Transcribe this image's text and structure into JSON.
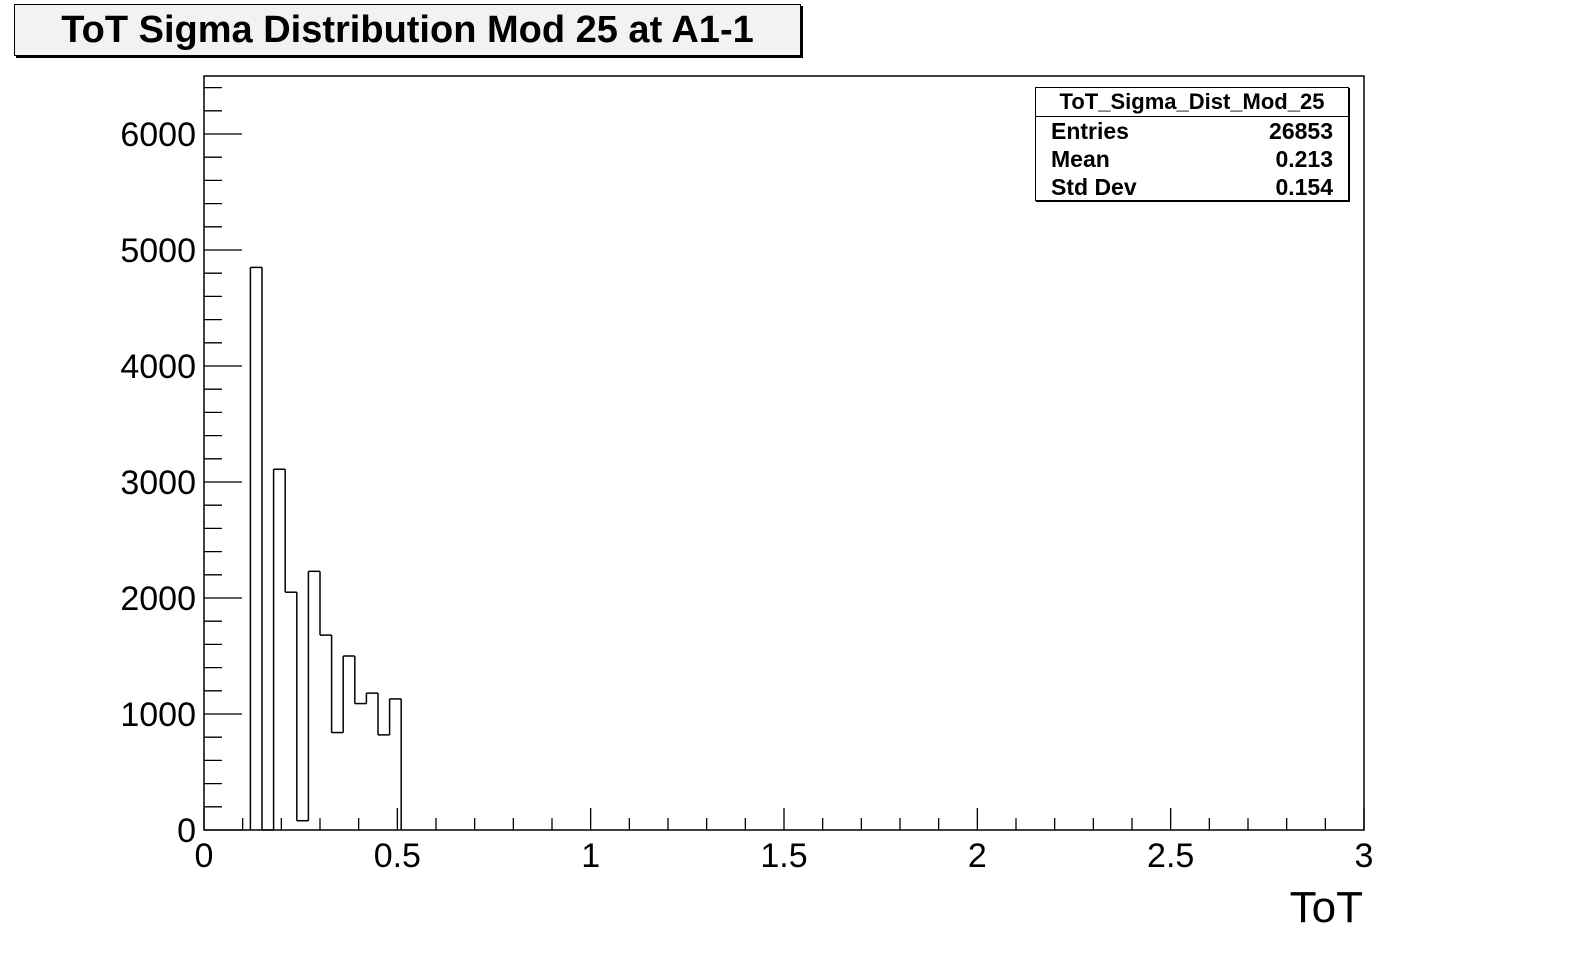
{
  "title": "ToT Sigma Distribution Mod 25 at A1-1",
  "stats": {
    "name": "ToT_Sigma_Dist_Mod_25",
    "rows": [
      {
        "label": "Entries",
        "value": "26853"
      },
      {
        "label": "Mean",
        "value": "0.213"
      },
      {
        "label": "Std Dev",
        "value": "0.154"
      }
    ]
  },
  "chart_data": {
    "type": "bar",
    "title": "ToT Sigma Distribution Mod 25 at A1-1",
    "xlabel": "ToT",
    "ylabel": "",
    "xlim": [
      0,
      3
    ],
    "ylim": [
      0,
      6500
    ],
    "grid": false,
    "legend": "top-right",
    "bin_edges": [
      0.12,
      0.15,
      0.18,
      0.21,
      0.24,
      0.27,
      0.3,
      0.33,
      0.36,
      0.39,
      0.42,
      0.45,
      0.48,
      0.51
    ],
    "values": [
      4850,
      0,
      3110,
      2050,
      80,
      2230,
      1680,
      840,
      1500,
      1090,
      1180,
      820,
      1130
    ],
    "x_ticks": [
      0,
      0.5,
      1,
      1.5,
      2,
      2.5,
      3
    ],
    "x_tick_labels": [
      "0",
      "0.5",
      "1",
      "1.5",
      "2",
      "2.5",
      "3"
    ],
    "y_ticks": [
      0,
      1000,
      2000,
      3000,
      4000,
      5000,
      6000
    ],
    "y_tick_labels": [
      "0",
      "1000",
      "2000",
      "3000",
      "4000",
      "5000",
      "6000"
    ]
  }
}
